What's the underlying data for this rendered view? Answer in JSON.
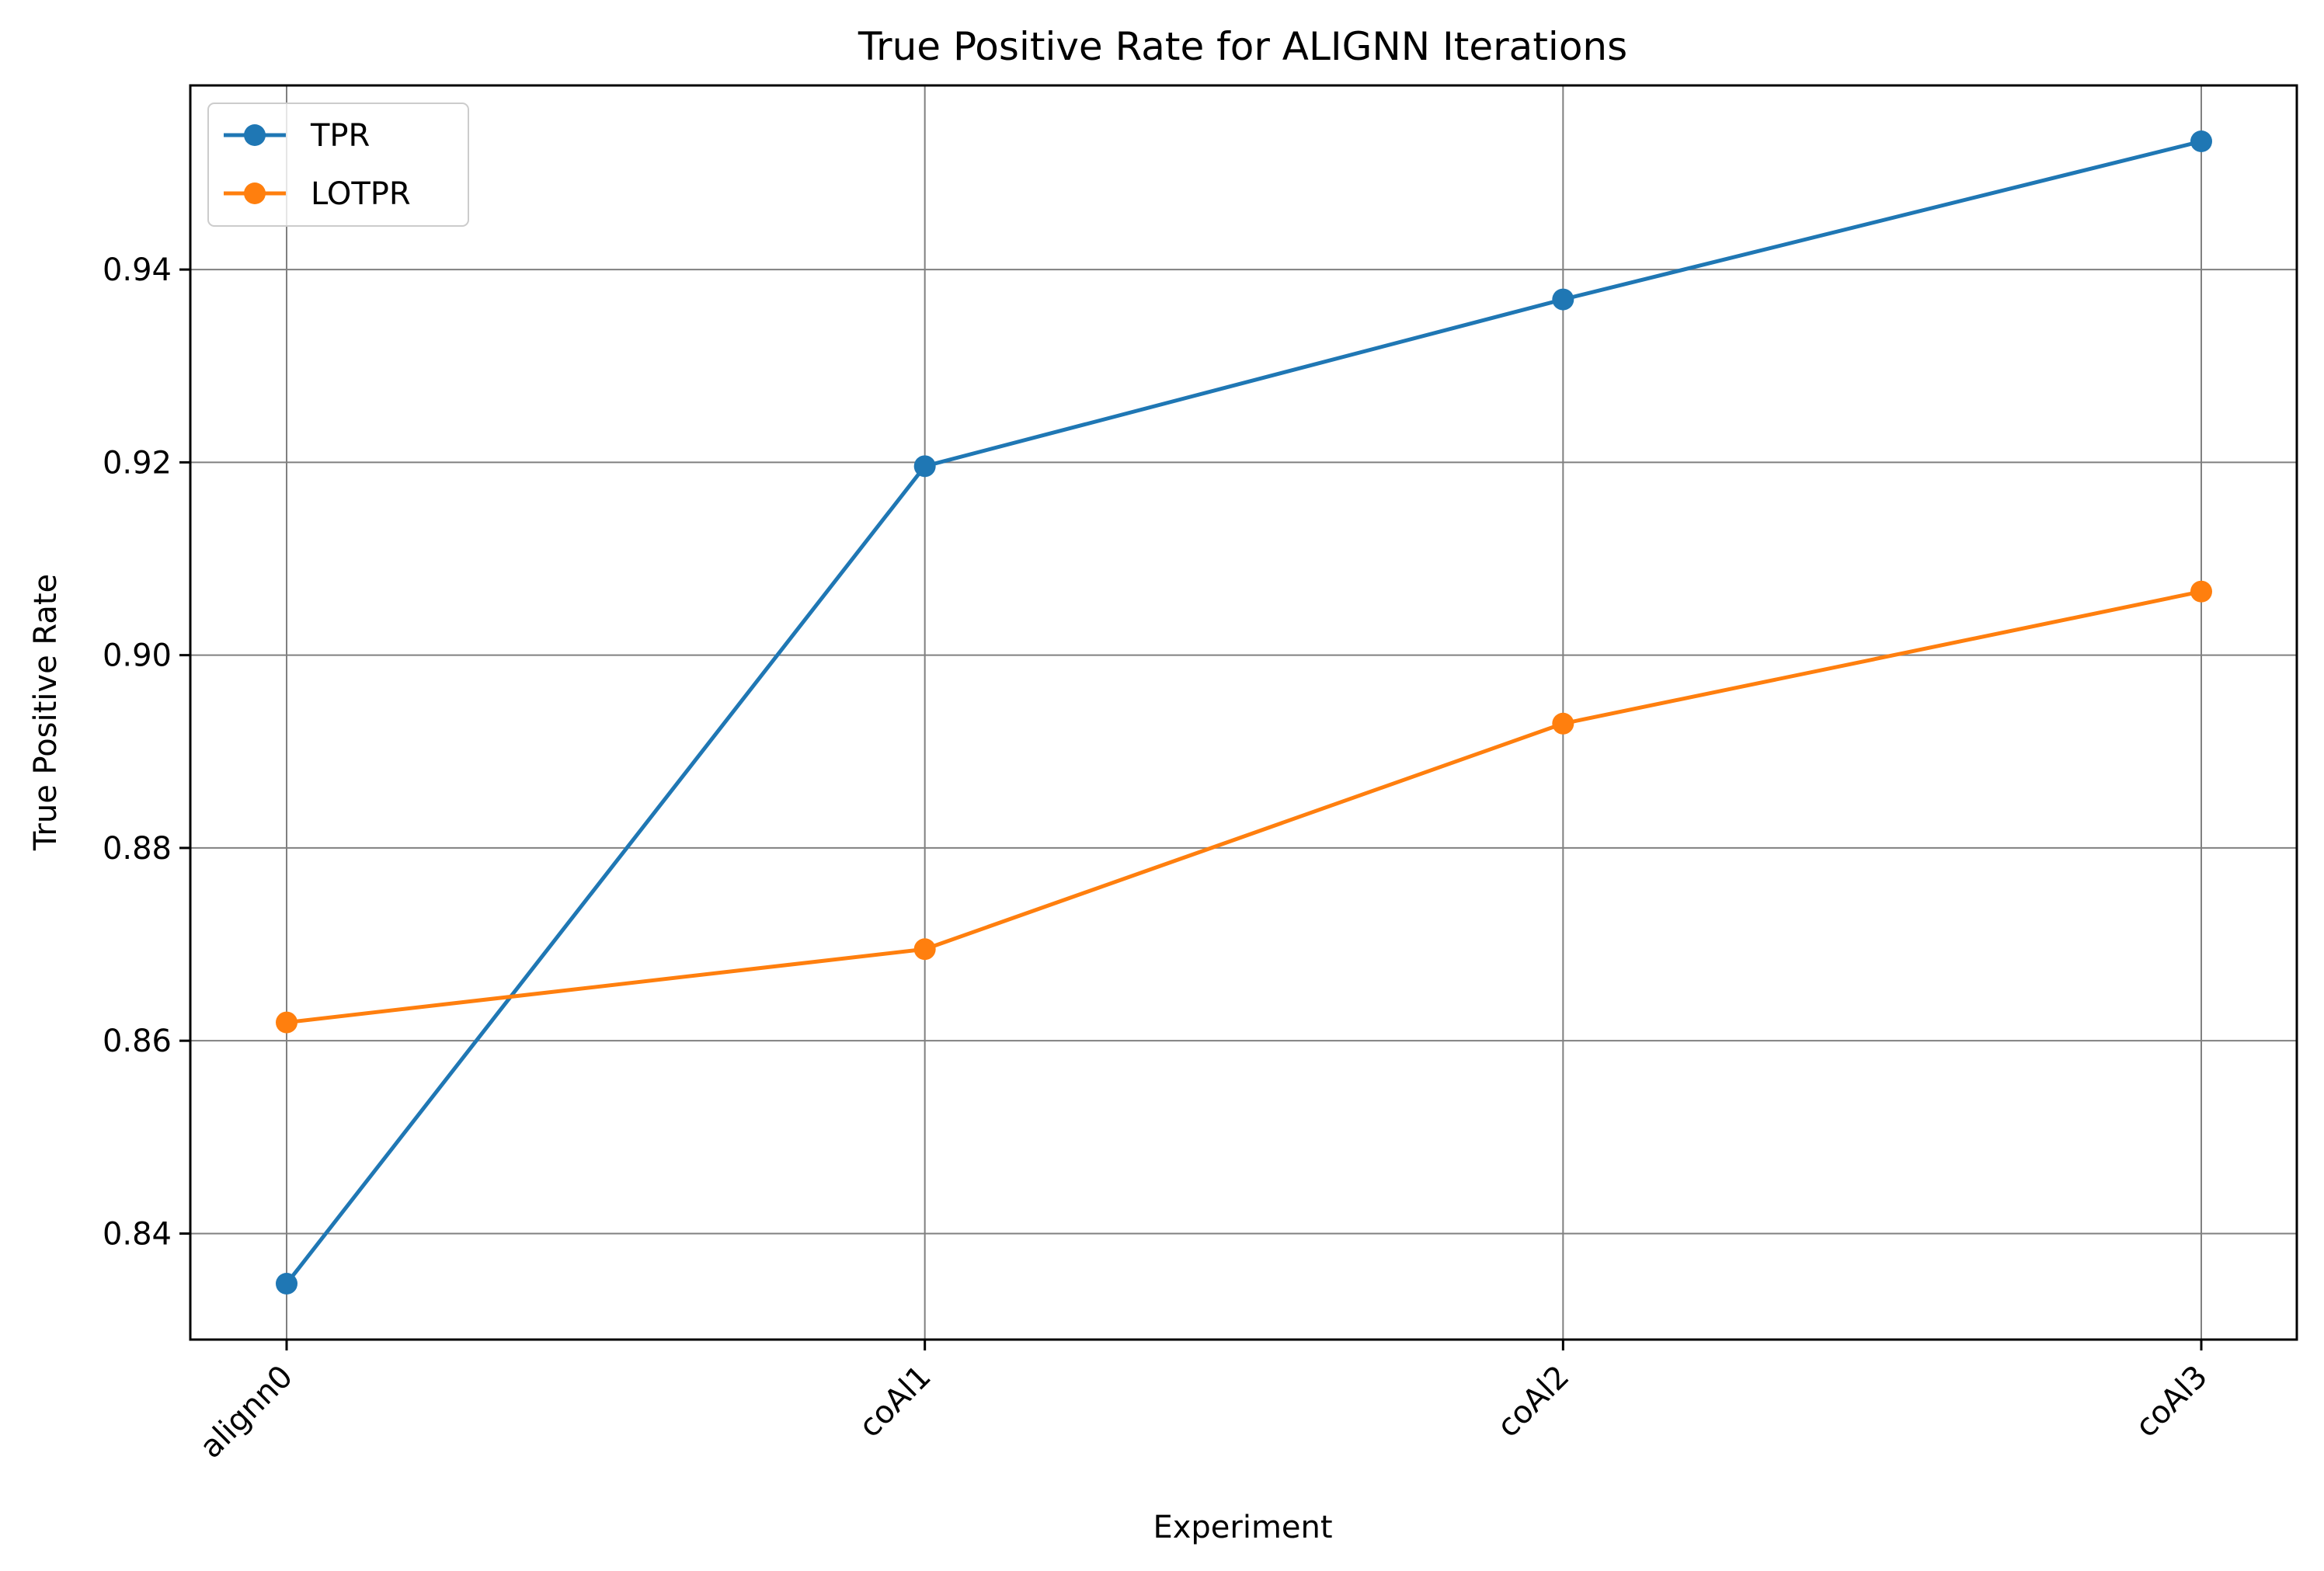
{
  "chart_data": {
    "type": "line",
    "title": "True Positive Rate for ALIGNN Iterations",
    "xlabel": "Experiment",
    "ylabel": "True Positive Rate",
    "categories": [
      "alignn0",
      "coAl1",
      "coAl2",
      "coAl3"
    ],
    "series": [
      {
        "name": "TPR",
        "color": "#1f77b4",
        "values": [
          0.8348,
          0.9196,
          0.9369,
          0.9533
        ]
      },
      {
        "name": "LOTPR",
        "color": "#ff7f0e",
        "values": [
          0.8619,
          0.8695,
          0.8929,
          0.9066
        ]
      }
    ],
    "ylim": [
      0.829,
      0.9591
    ],
    "yticks": [
      0.84,
      0.86,
      0.88,
      0.9,
      0.92,
      0.94
    ],
    "ytick_labels": [
      "0.84",
      "0.86",
      "0.88",
      "0.90",
      "0.92",
      "0.94"
    ],
    "grid": true,
    "legend_position": "upper-left",
    "marker": "circle"
  }
}
